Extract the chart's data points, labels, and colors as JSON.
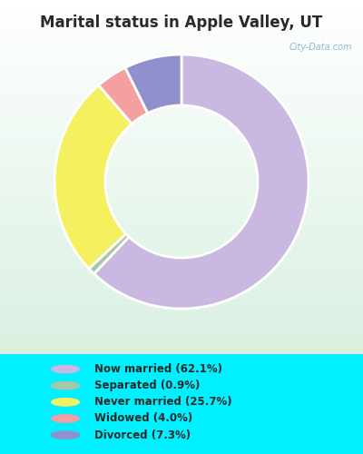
{
  "title": "Marital status in Apple Valley, UT",
  "title_fontsize": 12,
  "title_color": "#2a2a2a",
  "background_color": "#00f0ff",
  "slices": [
    {
      "label": "Now married (62.1%)",
      "value": 62.1,
      "color": "#c9b8df"
    },
    {
      "label": "Separated (0.9%)",
      "value": 0.9,
      "color": "#a8c8a8"
    },
    {
      "label": "Never married (25.7%)",
      "value": 25.7,
      "color": "#f5f060"
    },
    {
      "label": "Widowed (4.0%)",
      "value": 4.0,
      "color": "#f5a0a0"
    },
    {
      "label": "Divorced (7.3%)",
      "value": 7.3,
      "color": "#9090cc"
    }
  ],
  "watermark": "City-Data.com",
  "donut_width": 0.4
}
